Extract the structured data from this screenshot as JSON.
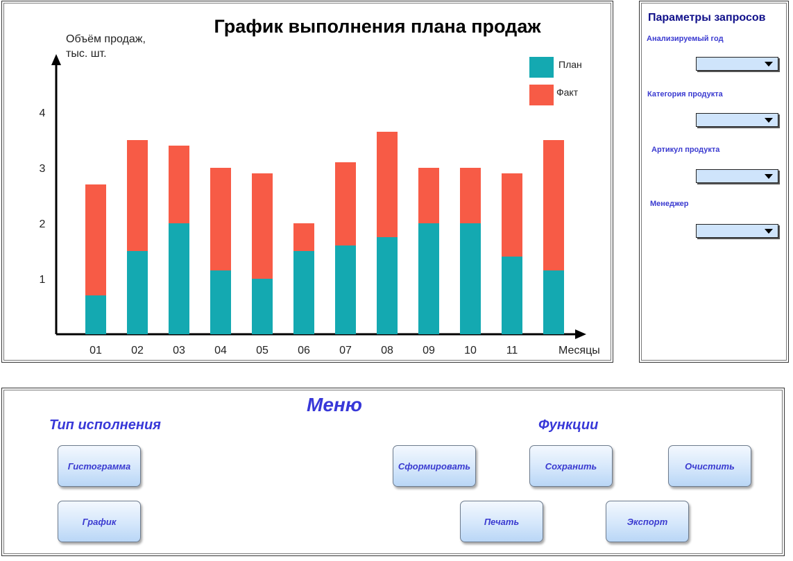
{
  "chart_data": {
    "type": "bar",
    "stacked": true,
    "title": "График выполнения плана продаж",
    "ylabel_line1": "Объём продаж,",
    "ylabel_line2": "тыс. шт.",
    "xlabel": "Месяцы",
    "categories": [
      "01",
      "02",
      "03",
      "04",
      "05",
      "06",
      "07",
      "08",
      "09",
      "10",
      "11",
      ""
    ],
    "y_ticks": [
      1,
      2,
      3,
      4
    ],
    "ylim": [
      0,
      5
    ],
    "grid": false,
    "legend_position": "top-right",
    "series": [
      {
        "name": "План",
        "color": "#14a9b1",
        "values": [
          0.7,
          1.5,
          2.0,
          1.15,
          1.0,
          1.5,
          1.6,
          1.75,
          2.0,
          2.0,
          1.4,
          1.15
        ]
      },
      {
        "name": "Факт",
        "color": "#f75b46",
        "values": [
          2.0,
          2.0,
          1.4,
          1.85,
          1.9,
          0.5,
          1.5,
          1.9,
          1.0,
          1.0,
          1.5,
          2.35
        ]
      }
    ]
  },
  "params": {
    "title": "Параметры запросов",
    "fields": [
      {
        "label": "Анализируемый год",
        "value": ""
      },
      {
        "label": "Категория продукта",
        "value": ""
      },
      {
        "label": "Артикул продукта",
        "value": ""
      },
      {
        "label": "Менеджер",
        "value": ""
      }
    ]
  },
  "menu": {
    "title": "Меню",
    "exec_type_title": "Тип исполнения",
    "functions_title": "Функции",
    "exec_buttons": [
      "Гистограмма",
      "График"
    ],
    "function_buttons": [
      "Сформировать",
      "Сохранить",
      "Очистить",
      "Печать",
      "Экспорт"
    ]
  },
  "colors": {
    "accent_text": "#3838d8",
    "params_title": "#10108a",
    "select_bg": "#cfe4fb",
    "button_gradient_bottom": "#b9d6f6"
  }
}
